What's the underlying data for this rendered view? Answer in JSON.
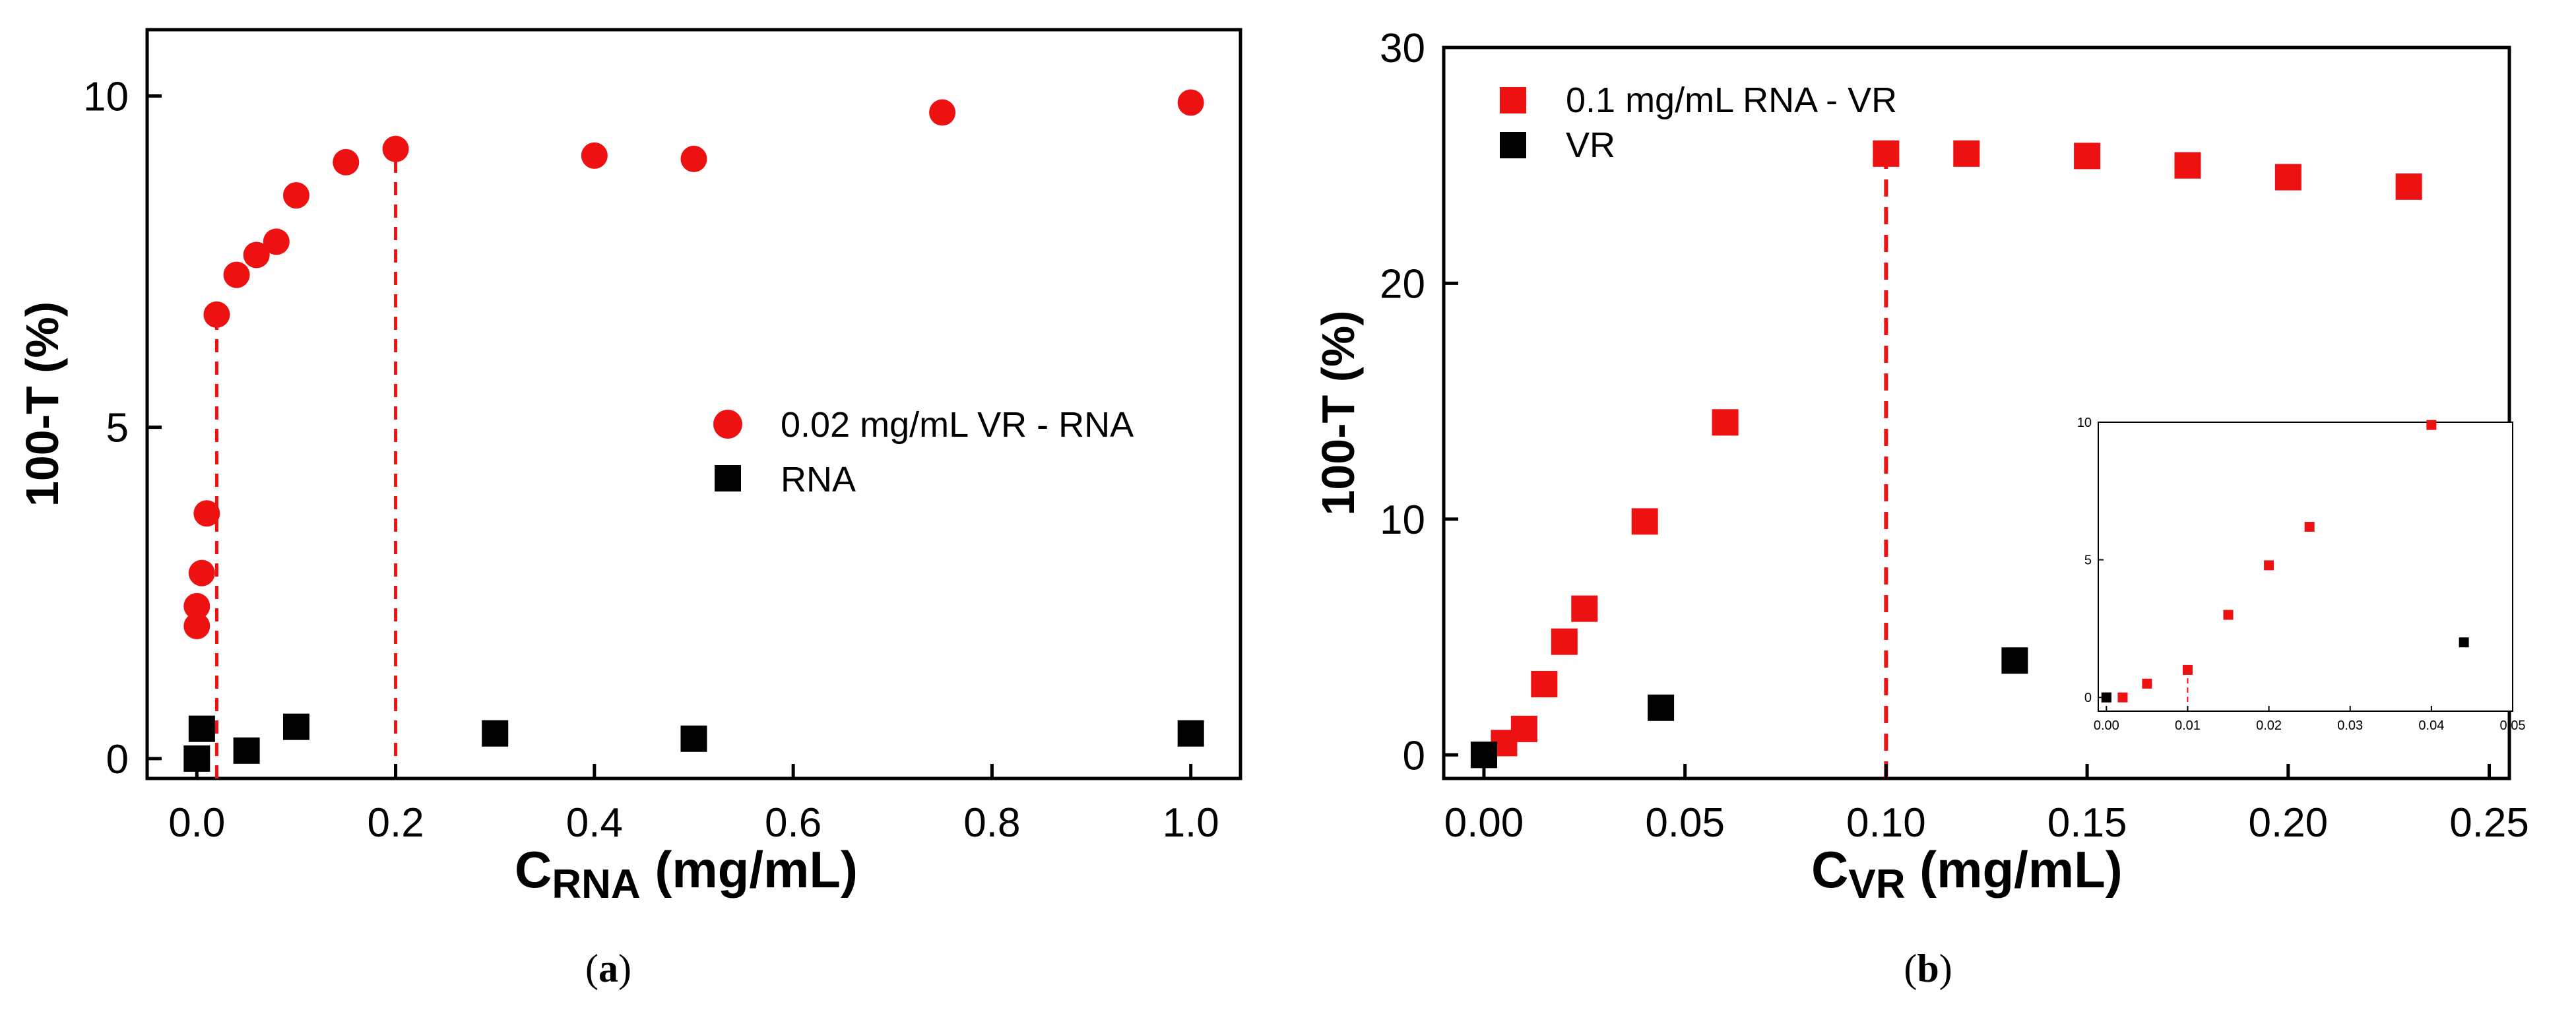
{
  "chart_data": [
    {
      "type": "scatter",
      "panel_label": "a",
      "xlabel_main": "C",
      "xlabel_sub": "RNA",
      "xlabel_unit": " (mg/mL)",
      "ylabel": "100-T (%)",
      "xlim": [
        -0.05,
        1.05
      ],
      "ylim": [
        -0.3,
        11
      ],
      "xticks": [
        "0.0",
        "0.2",
        "0.4",
        "0.6",
        "0.8",
        "1.0"
      ],
      "yticks": [
        "0",
        "5",
        "10"
      ],
      "series": [
        {
          "name": "0.02 mg/mL VR - RNA",
          "color": "#ee1111",
          "marker": "circle",
          "x": [
            0.0,
            0.0,
            0.005,
            0.01,
            0.02,
            0.04,
            0.06,
            0.08,
            0.1,
            0.15,
            0.2,
            0.4,
            0.5,
            0.75,
            1.0
          ],
          "y": [
            2.0,
            2.3,
            2.8,
            3.7,
            6.7,
            7.3,
            7.6,
            7.8,
            8.5,
            9.0,
            9.2,
            9.1,
            9.05,
            9.75,
            9.9
          ]
        },
        {
          "name": "RNA",
          "color": "#000000",
          "marker": "square",
          "x": [
            0.0,
            0.005,
            0.05,
            0.1,
            0.3,
            0.5,
            1.0
          ],
          "y": [
            0.0,
            0.45,
            0.12,
            0.48,
            0.38,
            0.3,
            0.38
          ]
        }
      ],
      "vlines": [
        0.02,
        0.2
      ]
    },
    {
      "type": "scatter",
      "panel_label": "b",
      "xlabel_main": "C",
      "xlabel_sub": "VR",
      "xlabel_unit": " (mg/mL)",
      "ylabel": "100-T (%)",
      "xlim": [
        -0.01,
        0.255
      ],
      "ylim": [
        -1,
        30
      ],
      "xticks": [
        "0.00",
        "0.05",
        "0.10",
        "0.15",
        "0.20",
        "0.25"
      ],
      "yticks": [
        "0",
        "10",
        "20",
        "30"
      ],
      "series": [
        {
          "name": "0.1 mg/mL RNA - VR",
          "color": "#ee1111",
          "marker": "square",
          "x": [
            0.0,
            0.005,
            0.01,
            0.015,
            0.02,
            0.025,
            0.04,
            0.06,
            0.1,
            0.12,
            0.15,
            0.175,
            0.2,
            0.23
          ],
          "y": [
            0.0,
            0.5,
            1.1,
            3.0,
            4.8,
            6.2,
            9.9,
            14.1,
            25.5,
            25.5,
            25.4,
            25.0,
            24.5,
            24.1
          ]
        },
        {
          "name": "VR",
          "color": "#000000",
          "marker": "square",
          "x": [
            0.0,
            0.044,
            0.132
          ],
          "y": [
            0.0,
            2.0,
            4.0
          ]
        }
      ],
      "vlines": [
        0.1
      ],
      "inset": {
        "xlim": [
          -0.001,
          0.05
        ],
        "ylim": [
          -0.5,
          10
        ],
        "xticks": [
          "0.00",
          "0.01",
          "0.02",
          "0.03",
          "0.04",
          "0.05"
        ],
        "yticks": [
          "0",
          "5",
          "10"
        ],
        "series": [
          {
            "name": "0.1 mg/mL RNA - VR",
            "color": "#ee1111",
            "x": [
              0.0,
              0.002,
              0.005,
              0.01,
              0.015,
              0.02,
              0.025,
              0.04
            ],
            "y": [
              0.0,
              0.0,
              0.5,
              1.0,
              3.0,
              4.8,
              6.2,
              9.9
            ]
          },
          {
            "name": "VR",
            "color": "#000000",
            "x": [
              0.0,
              0.044
            ],
            "y": [
              0.0,
              2.0
            ]
          }
        ],
        "vlines": [
          0.01
        ]
      }
    }
  ]
}
